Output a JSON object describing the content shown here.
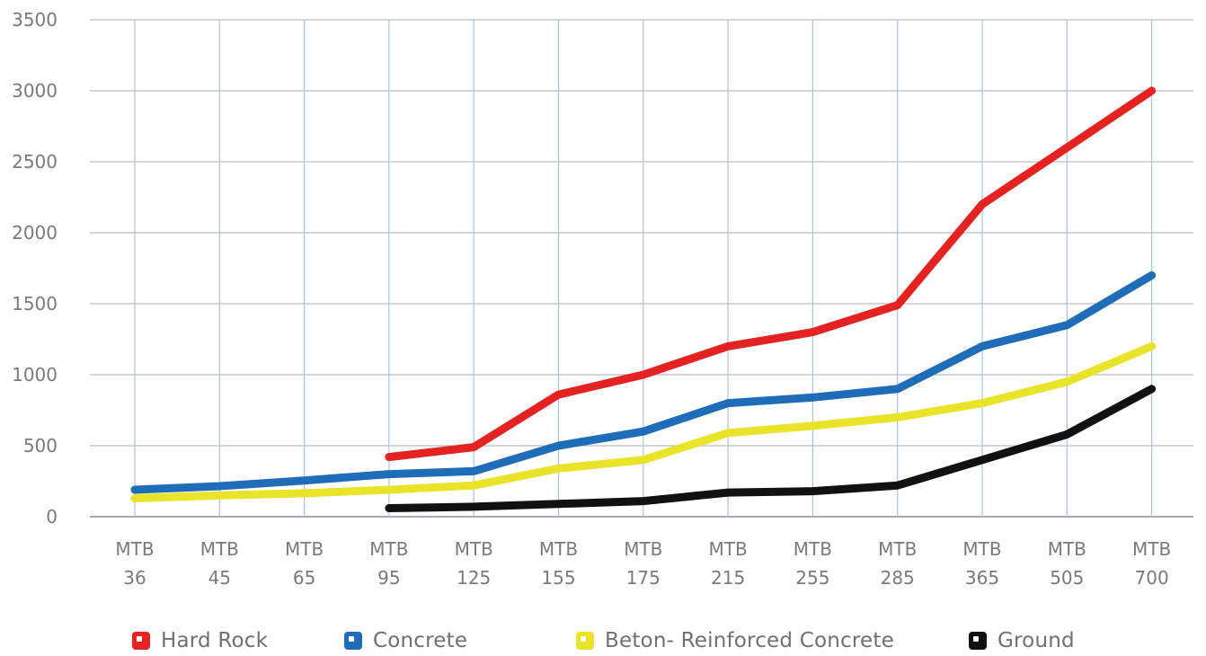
{
  "colors": {
    "grid_h": "#b9bdc4",
    "grid_v": "#a8c4e0",
    "axis": "#8a8f97",
    "tick_text": "#7a7a7a"
  },
  "chart_data": {
    "type": "line",
    "title": "",
    "xlabel": "",
    "ylabel": "",
    "categories": [
      [
        "MTB",
        "36"
      ],
      [
        "MTB",
        "45"
      ],
      [
        "MTB",
        "65"
      ],
      [
        "MTB",
        "95"
      ],
      [
        "MTB",
        "125"
      ],
      [
        "MTB",
        "155"
      ],
      [
        "MTB",
        "175"
      ],
      [
        "MTB",
        "215"
      ],
      [
        "MTB",
        "255"
      ],
      [
        "MTB",
        "285"
      ],
      [
        "MTB",
        "365"
      ],
      [
        "MTB",
        "505"
      ],
      [
        "MTB",
        "700"
      ]
    ],
    "ylim": [
      0,
      3500
    ],
    "yticks": [
      "0",
      "500",
      "1000",
      "1500",
      "2000",
      "2500",
      "3000",
      "3500"
    ],
    "grid": true,
    "legend_position": "bottom",
    "series": [
      {
        "name": "Hard Rock",
        "color": "#e32221",
        "values": [
          null,
          null,
          null,
          420,
          490,
          860,
          1000,
          1200,
          1300,
          1490,
          2200,
          2600,
          3000
        ]
      },
      {
        "name": "Concrete",
        "color": "#1f6db8",
        "values": [
          190,
          215,
          255,
          300,
          320,
          500,
          600,
          800,
          840,
          900,
          1200,
          1350,
          1700
        ]
      },
      {
        "name": "Beton- Reinforced Concrete",
        "color": "#e9e32a",
        "values": [
          130,
          150,
          165,
          190,
          220,
          340,
          400,
          590,
          640,
          700,
          800,
          950,
          1200
        ]
      },
      {
        "name": "Ground",
        "color": "#111111",
        "values": [
          null,
          null,
          null,
          60,
          70,
          90,
          110,
          170,
          180,
          220,
          400,
          580,
          900
        ]
      }
    ]
  }
}
